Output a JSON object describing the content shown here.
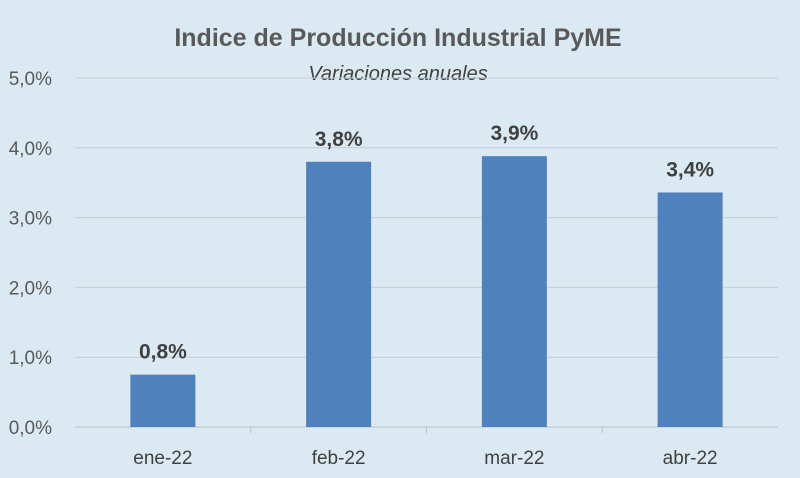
{
  "chart_data": {
    "type": "bar",
    "title": "Indice de Producción Industrial PyME",
    "subtitle": "Variaciones anuales",
    "categories": [
      "ene-22",
      "feb-22",
      "mar-22",
      "abr-22"
    ],
    "values": [
      0.75,
      3.8,
      3.88,
      3.36
    ],
    "data_labels": [
      "0,8%",
      "3,8%",
      "3,9%",
      "3,4%"
    ],
    "y_ticks": [
      "0,0%",
      "1,0%",
      "2,0%",
      "3,0%",
      "4,0%",
      "5,0%"
    ],
    "ylim": [
      0,
      5
    ],
    "grid": true,
    "legend": "none",
    "bar_color": "#4f81bd",
    "xlabel": "",
    "ylabel": ""
  }
}
